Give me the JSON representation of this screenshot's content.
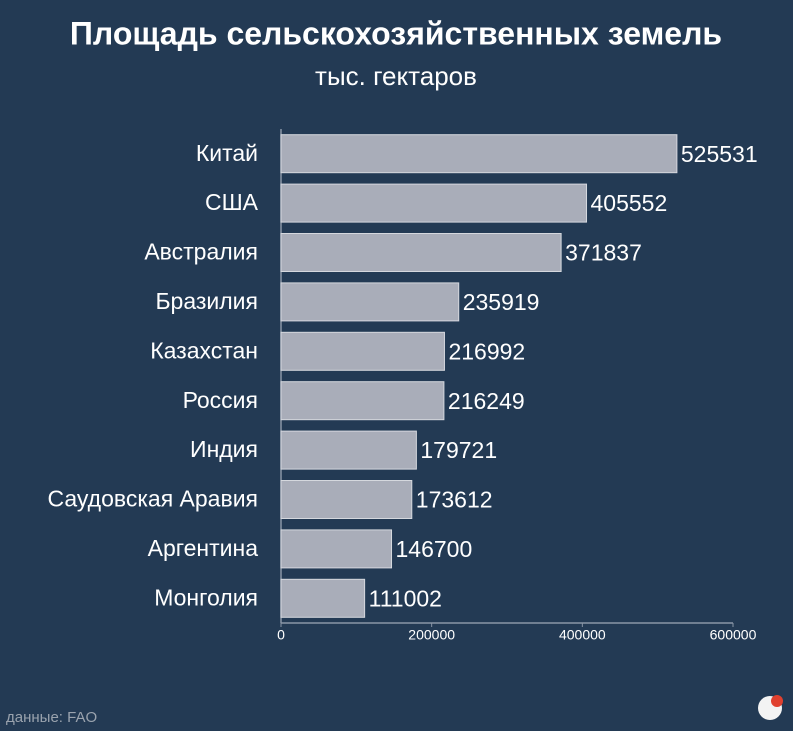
{
  "chart_data": {
    "type": "barh",
    "title": "Площадь сельскохозяйственных земель",
    "subtitle": "тыс. гектаров",
    "categories": [
      "Китай",
      "США",
      "Австралия",
      "Бразилия",
      "Казахстан",
      "Россия",
      "Индия",
      "Саудовская Аравия",
      "Аргентина",
      "Монголия"
    ],
    "values": [
      525531,
      405552,
      371837,
      235919,
      216992,
      216249,
      179721,
      173612,
      146700,
      111002
    ],
    "color": "#a9adb9",
    "xlim": [
      0,
      600000
    ],
    "xticks": [
      0,
      200000,
      400000,
      600000
    ],
    "source": "данные: FAO"
  }
}
